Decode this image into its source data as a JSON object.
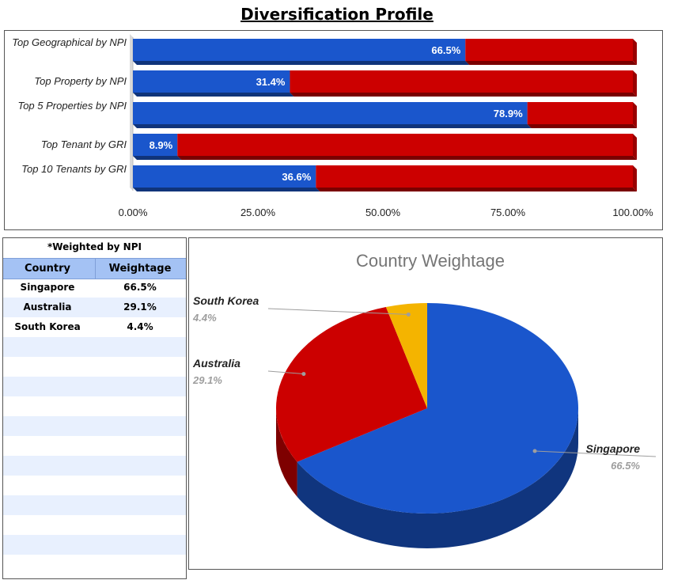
{
  "title": "Diversification Profile",
  "chart_data": [
    {
      "type": "bar",
      "orientation": "horizontal",
      "stacked": true,
      "categories": [
        "Top Geographical by NPI",
        "Top Property by NPI",
        "Top 5 Properties by NPI",
        "Top Tenant by GRI",
        "Top 10 Tenants by GRI"
      ],
      "series": [
        {
          "values": [
            66.5,
            31.4,
            78.9,
            8.9,
            36.6
          ],
          "color": "#1a56cc"
        },
        {
          "values": [
            33.5,
            68.6,
            21.1,
            91.1,
            63.4
          ],
          "color": "#cc0000"
        }
      ],
      "data_labels": [
        "66.5%",
        "31.4%",
        "78.9%",
        "8.9%",
        "36.6%"
      ],
      "x_ticks": [
        "0.00%",
        "25.00%",
        "50.00%",
        "75.00%",
        "100.00%"
      ],
      "xlim": [
        0,
        100
      ],
      "legend": "none"
    },
    {
      "type": "pie",
      "title": "Country Weightage",
      "categories": [
        "Singapore",
        "Australia",
        "South Korea"
      ],
      "values": [
        66.5,
        29.1,
        4.4
      ],
      "value_labels": [
        "66.5%",
        "29.1%",
        "4.4%"
      ],
      "colors": [
        "#1a56cc",
        "#cc0000",
        "#f4b400"
      ],
      "legend": "none"
    }
  ],
  "table": {
    "note": "*Weighted by NPI",
    "headers": [
      "Country",
      "Weightage"
    ],
    "rows": [
      [
        "Singapore",
        "66.5%"
      ],
      [
        "Australia",
        "29.1%"
      ],
      [
        "South Korea",
        "4.4%"
      ]
    ],
    "header_color": "#a4c2f4",
    "stripe_color": "#e8f0fe"
  }
}
